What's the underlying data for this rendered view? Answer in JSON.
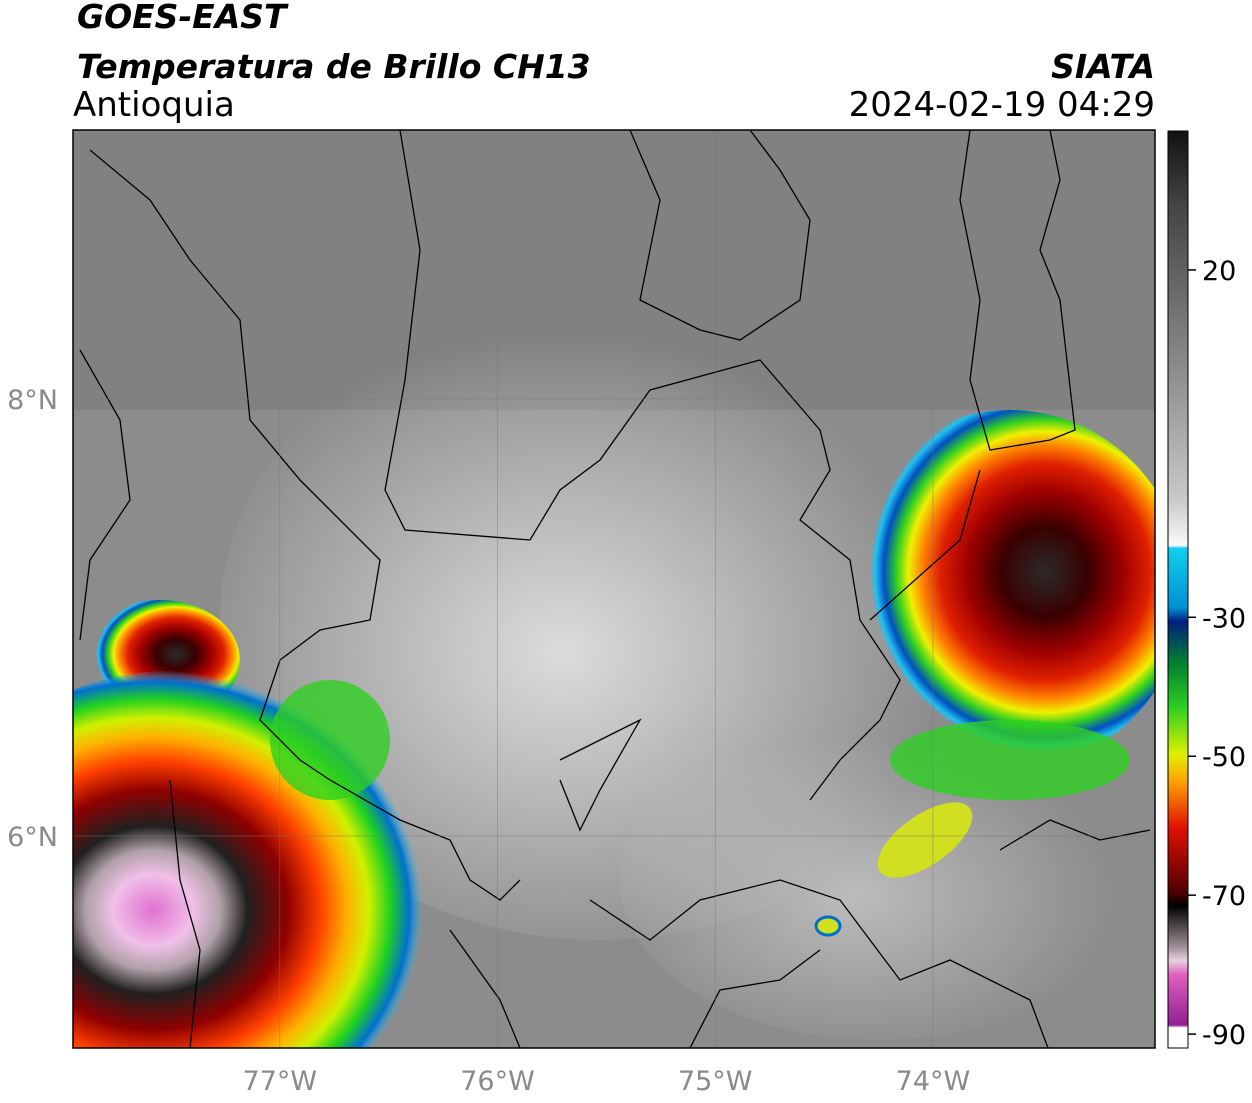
{
  "header": {
    "title": "GOES-EAST",
    "subtitle": "Temperatura de Brillo CH13",
    "region": "Antioquia",
    "source": "SIATA",
    "datetime": "2024-02-19 04:29"
  },
  "map": {
    "lon_range": [
      -77.95,
      -72.98
    ],
    "lat_range": [
      5.03,
      9.23
    ],
    "lon_ticks": [
      {
        "value": -77,
        "label": "77°W"
      },
      {
        "value": -76,
        "label": "76°W"
      },
      {
        "value": -75,
        "label": "75°W"
      },
      {
        "value": -74,
        "label": "74°W"
      }
    ],
    "lat_ticks": [
      {
        "value": 8,
        "label": "8°N"
      },
      {
        "value": 6,
        "label": "6°N"
      }
    ]
  },
  "colorbar": {
    "range": [
      -92,
      40
    ],
    "ticks": [
      20,
      -30,
      -50,
      -70,
      -90
    ]
  }
}
